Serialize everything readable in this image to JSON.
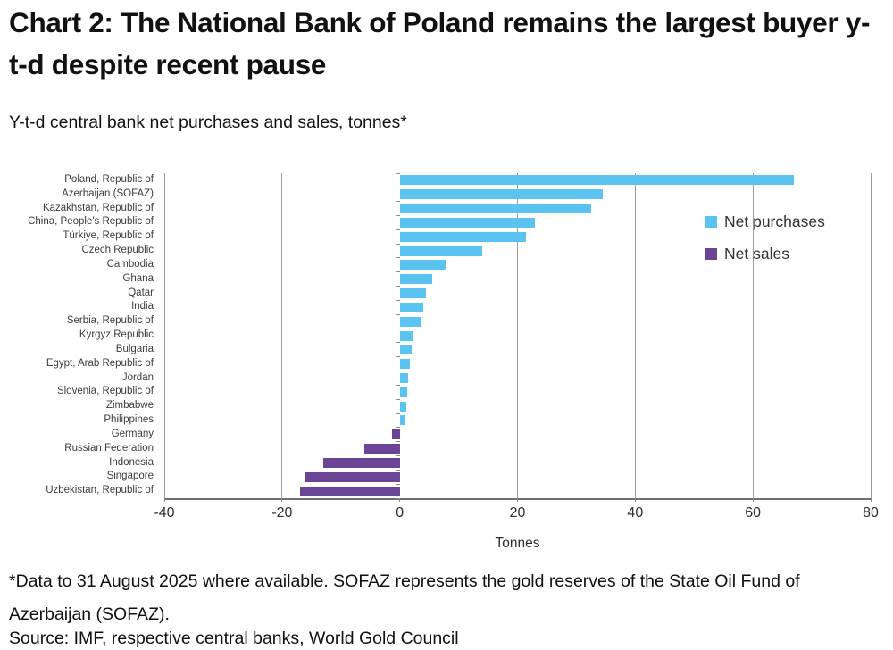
{
  "title": "Chart 2: The National Bank of Poland remains the largest buyer y-t-d despite recent pause",
  "subtitle": "Y-t-d central bank net purchases and sales, tonnes*",
  "legend": {
    "purchases_label": "Net purchases",
    "sales_label": "Net sales"
  },
  "colors": {
    "net_purchases": "#5ac3ef",
    "net_sales": "#6b4696",
    "gridline": "#9b9b9b",
    "axis": "#6e6e6e"
  },
  "chart_data": {
    "type": "bar",
    "orientation": "horizontal",
    "title": "Y-t-d central bank net purchases and sales, tonnes*",
    "xlabel": "Tonnes",
    "xlim": [
      -40,
      80
    ],
    "xticks": [
      -40,
      -20,
      0,
      20,
      40,
      60,
      80
    ],
    "grid": true,
    "legend_position": "inside upper right",
    "categories": [
      "Poland, Republic of",
      "Azerbaijan (SOFAZ)",
      "Kazakhstan, Republic of",
      "China, People's Republic of",
      "Türkiye, Republic of",
      "Czech Republic",
      "Cambodia",
      "Ghana",
      "Qatar",
      "India",
      "Serbia, Republic of",
      "Kyrgyz Republic",
      "Bulgaria",
      "Egypt, Arab Republic of",
      "Jordan",
      "Slovenia, Republic of",
      "Zimbabwe",
      "Philippines",
      "Germany",
      "Russian Federation",
      "Indonesia",
      "Singapore",
      "Uzbekistan, Republic of"
    ],
    "values": [
      67,
      34.5,
      32.5,
      23,
      21.5,
      14,
      8,
      5.5,
      4.5,
      4,
      3.5,
      2.3,
      2,
      1.7,
      1.4,
      1.2,
      1.1,
      1,
      -1.3,
      -6,
      -13,
      -16,
      -17
    ],
    "series": [
      {
        "name": "Net purchases",
        "color": "#5ac3ef",
        "applies_to": "positive values"
      },
      {
        "name": "Net sales",
        "color": "#6b4696",
        "applies_to": "negative values"
      }
    ]
  },
  "footnote": "*Data to 31 August 2025 where available. SOFAZ represents the gold reserves of the State Oil Fund of Azerbaijan (SOFAZ).",
  "source": "Source: IMF, respective central banks, World Gold Council"
}
